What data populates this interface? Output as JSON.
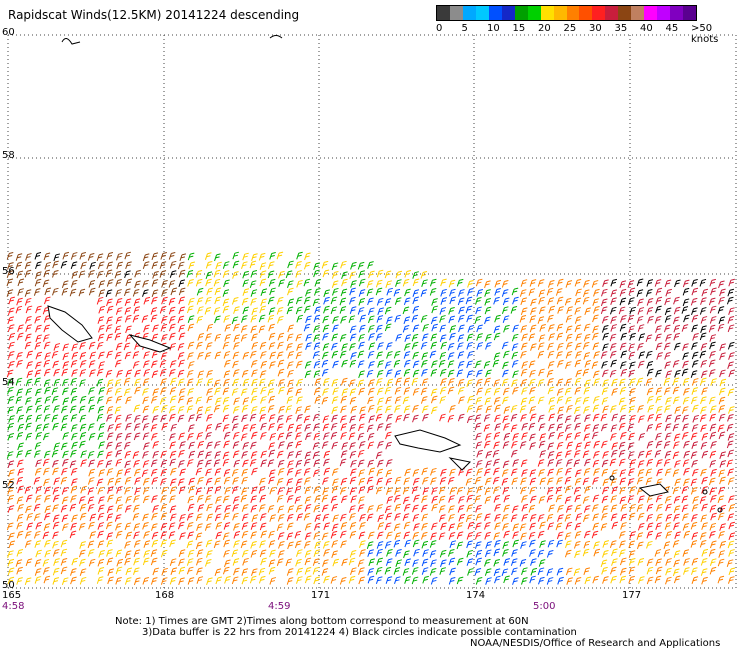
{
  "title": "Rapidscat Winds(12.5KM) 20141224 descending",
  "legend": {
    "colors": [
      "#3a3a3a",
      "#8c8c8c",
      "#00a8ff",
      "#00c8ff",
      "#0050ff",
      "#1428c8",
      "#00a000",
      "#00d000",
      "#ffe000",
      "#ffb800",
      "#ff8000",
      "#ff5000",
      "#ff2020",
      "#c81e3c",
      "#8b4513",
      "#c08060",
      "#ff00ff",
      "#c000ff",
      "#8000c0",
      "#5a0090"
    ],
    "ticks": [
      "0",
      "5",
      "10",
      "15",
      "20",
      "25",
      "30",
      "35",
      "40",
      "45",
      ">50 knots"
    ]
  },
  "axes": {
    "lat_labels": [
      "60",
      "58",
      "56",
      "54",
      "52",
      "50"
    ],
    "lon_labels": [
      "165",
      "168",
      "171",
      "174",
      "177"
    ],
    "time_labels": [
      "4:58",
      "4:59",
      "5:00"
    ]
  },
  "notes": [
    "Note: 1) Times are GMT 2)Times along bottom correspond to measurement at 60N",
    "3)Data buffer is 22 hrs from 20141224 4) Black circles indicate possible contamination"
  ],
  "credit": "NOAA/NESDIS/Office of Research and Applications"
}
